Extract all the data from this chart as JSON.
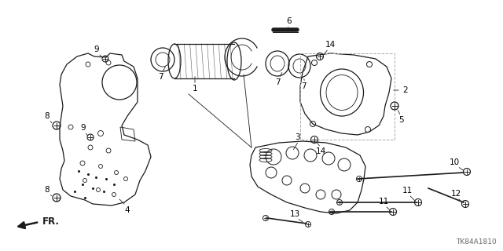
{
  "diagram_id": "TK84A1810",
  "bg_color": "#ffffff",
  "line_color": "#1a1a1a",
  "gray_color": "#888888",
  "figsize": [
    6.4,
    3.2
  ],
  "dpi": 100
}
